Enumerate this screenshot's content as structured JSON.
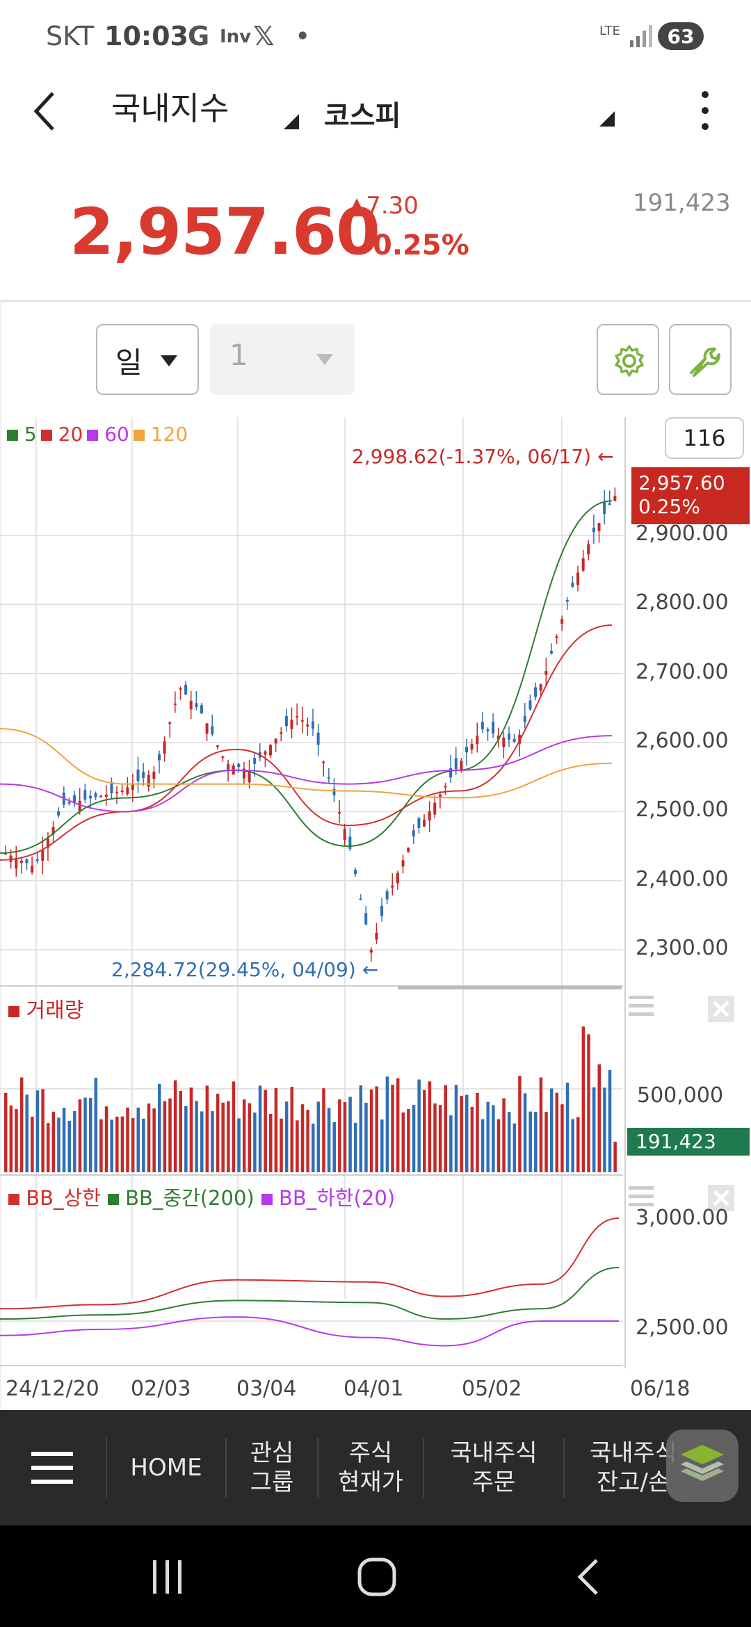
{
  "status": {
    "carrier": "SKT",
    "time": "10:03",
    "icons": [
      "google-icon",
      "inv-icon",
      "x-icon",
      "dot-icon"
    ],
    "network": "LTE",
    "battery": "63"
  },
  "header": {
    "title": "국내지수",
    "index_selector": "코스피"
  },
  "quote": {
    "price": "2,957.60",
    "change": "▲7.30",
    "change_pct": "0.25%",
    "volume": "191,423",
    "up_color": "#d93a2f"
  },
  "controls": {
    "period": "일",
    "period_count": "1"
  },
  "chart": {
    "badge_count": "116",
    "legend": [
      {
        "label": "5",
        "color": "#2e7d32"
      },
      {
        "label": "20",
        "color": "#d32f2f"
      },
      {
        "label": "60",
        "color": "#b43be8"
      },
      {
        "label": "120",
        "color": "#f2a33a"
      }
    ],
    "high_note": "2,998.62(-1.37%, 06/17)",
    "low_note": "2,284.72(29.45%, 04/09)",
    "current_tag_price": "2,957.60",
    "current_tag_pct": "0.25%",
    "y_ticks": [
      "2,900.00",
      "2,800.00",
      "2,700.00",
      "2,600.00",
      "2,500.00",
      "2,400.00",
      "2,300.00"
    ],
    "volume_label": "거래량",
    "volume_tick": "500,000",
    "volume_tag": "191,423",
    "bb_legend": [
      {
        "label": "BB_상한",
        "color": "#d32f2f"
      },
      {
        "label": "BB_중간(200)",
        "color": "#2e7d32"
      },
      {
        "label": "BB_하한(20)",
        "color": "#b43be8"
      }
    ],
    "bb_ticks": [
      "3,000.00",
      "2,500.00"
    ],
    "x_labels": [
      "24/12/20",
      "02/03",
      "03/04",
      "04/01",
      "05/02",
      "06/18"
    ]
  },
  "chart_data": {
    "type": "line",
    "x": [
      "24/12/20",
      "02/03",
      "03/04",
      "04/01",
      "05/02",
      "06/18"
    ],
    "series": [
      {
        "name": "5",
        "values": [
          2440,
          2520,
          2560,
          2450,
          2560,
          2950
        ]
      },
      {
        "name": "20",
        "values": [
          2430,
          2500,
          2590,
          2480,
          2530,
          2770
        ]
      },
      {
        "name": "60",
        "values": [
          2540,
          2500,
          2560,
          2540,
          2560,
          2610
        ]
      },
      {
        "name": "120",
        "values": [
          2620,
          2540,
          2540,
          2530,
          2520,
          2570
        ]
      }
    ],
    "ylim": [
      2280,
      3000
    ],
    "high": 2998.62,
    "low": 2284.72
  },
  "nav": {
    "menu_icon": "hamburger-icon",
    "items": [
      "HOME",
      "관심\n그룹",
      "주식\n현재가",
      "국내주식\n주문",
      "국내주식\n잔고/손"
    ],
    "layers_icon": "layers-icon"
  },
  "sysnav": [
    "recent-apps-icon",
    "home-icon",
    "back-icon"
  ]
}
